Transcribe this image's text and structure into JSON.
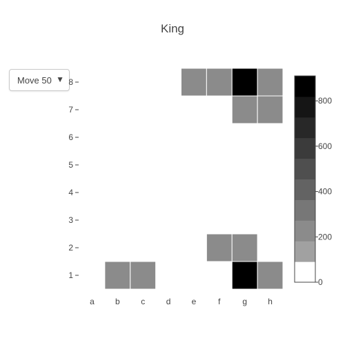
{
  "title": "King",
  "dropdown": {
    "selected": "Move 50",
    "arrow_icon": "triangle-down-icon"
  },
  "chart_data": {
    "type": "heatmap",
    "title": "King",
    "x_categories": [
      "a",
      "b",
      "c",
      "d",
      "e",
      "f",
      "g",
      "h"
    ],
    "y_categories": [
      "1",
      "2",
      "3",
      "4",
      "5",
      "6",
      "7",
      "8"
    ],
    "z": [
      [
        0,
        200,
        200,
        0,
        0,
        0,
        900,
        200
      ],
      [
        0,
        0,
        0,
        0,
        0,
        200,
        200,
        0
      ],
      [
        0,
        0,
        0,
        0,
        0,
        0,
        0,
        0
      ],
      [
        0,
        0,
        0,
        0,
        0,
        0,
        0,
        0
      ],
      [
        0,
        0,
        0,
        0,
        0,
        0,
        0,
        0
      ],
      [
        0,
        0,
        0,
        0,
        0,
        0,
        0,
        0
      ],
      [
        0,
        0,
        0,
        0,
        0,
        0,
        200,
        200
      ],
      [
        0,
        0,
        0,
        0,
        200,
        200,
        900,
        200
      ]
    ],
    "colorscale": {
      "range": [
        0,
        910
      ],
      "ticks": [
        0,
        200,
        400,
        600,
        800
      ],
      "tick_labels": [
        "0",
        "200",
        "400",
        "600",
        "800"
      ],
      "colors": [
        "#ffffff",
        "#a1a1a1",
        "#8b8b8b",
        "#777777",
        "#636363",
        "#4f4f4f",
        "#3b3b3b",
        "#282828",
        "#151515",
        "#000000"
      ]
    }
  }
}
